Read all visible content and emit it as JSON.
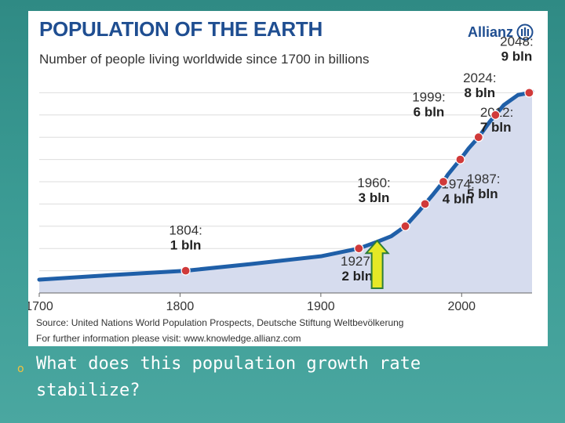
{
  "header": {
    "title": "POPULATION OF THE EARTH",
    "subtitle": "Number of people living worldwide since 1700 in billions",
    "logo_text": "Allianz"
  },
  "footer": {
    "source": "Source: United Nations World Population Prospects, Deutsche Stiftung Weltbevölkerung",
    "further_info": "For further information please visit: www.knowledge.allianz.com"
  },
  "slide": {
    "question_line1": "What does this population growth rate",
    "question_line2": "stabilize?"
  },
  "colors": {
    "title": "#1f4e91",
    "line": "#1f5fa8",
    "fill": "#d6dcee",
    "point": "#d03a3a",
    "arrow_fill": "#e5e826",
    "arrow_stroke": "#2d7d3a"
  },
  "chart_data": {
    "type": "area",
    "xlim": [
      1700,
      2050
    ],
    "ylim": [
      0,
      10
    ],
    "x_ticks": [
      "1700",
      "1800",
      "1900",
      "2000"
    ],
    "grid": true,
    "series": [
      {
        "x": [
          1700,
          1750,
          1804,
          1850,
          1900,
          1927,
          1940,
          1950,
          1960,
          1970,
          1974,
          1980,
          1987,
          1990,
          1999,
          2005,
          2012,
          2020,
          2024,
          2030,
          2040,
          2048,
          2050
        ],
        "values": [
          0.6,
          0.8,
          1.0,
          1.3,
          1.65,
          2.0,
          2.3,
          2.55,
          3.0,
          3.7,
          4.0,
          4.45,
          5.0,
          5.3,
          6.0,
          6.5,
          7.0,
          7.7,
          8.0,
          8.45,
          8.9,
          9.0,
          9.05
        ]
      }
    ],
    "annotations": [
      {
        "year": "1804:",
        "label": "1 bln",
        "x": 1804,
        "y": 1
      },
      {
        "year": "1927:",
        "label": "2 bln",
        "x": 1927,
        "y": 2
      },
      {
        "year": "1960:",
        "label": "3 bln",
        "x": 1960,
        "y": 3
      },
      {
        "year": "1974:",
        "label": "4 bln",
        "x": 1974,
        "y": 4
      },
      {
        "year": "1987:",
        "label": "5 bln",
        "x": 1987,
        "y": 5
      },
      {
        "year": "1999:",
        "label": "6 bln",
        "x": 1999,
        "y": 6
      },
      {
        "year": "2012:",
        "label": "7 bln",
        "x": 2012,
        "y": 7
      },
      {
        "year": "2024:",
        "label": "8 bln",
        "x": 2024,
        "y": 8
      },
      {
        "year": "2048:",
        "label": "9 bln",
        "x": 2048,
        "y": 9
      }
    ],
    "arrow_at_year": 1940
  }
}
